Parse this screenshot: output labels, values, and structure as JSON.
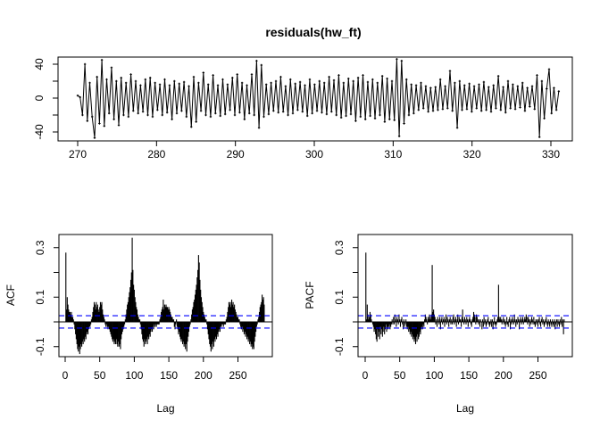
{
  "chart_data": [
    {
      "type": "line",
      "title": "residuals(hw_ft)",
      "xlabel": "",
      "ylabel": "",
      "xlim": [
        270,
        331
      ],
      "ylim": [
        -47,
        46
      ],
      "x_ticks": [
        270,
        280,
        290,
        300,
        310,
        320,
        330
      ],
      "y_ticks": [
        -40,
        -20,
        0,
        20,
        40
      ],
      "y_tick_labels": [
        "-40",
        "",
        "0",
        "",
        "40"
      ],
      "x_start": 270,
      "x_end": 331,
      "values": [
        3,
        1,
        -20,
        40,
        -27,
        18,
        -22,
        -47,
        25,
        -30,
        45,
        -33,
        22,
        -18,
        36,
        -25,
        20,
        -32,
        24,
        -20,
        18,
        -22,
        28,
        -15,
        20,
        -18,
        15,
        -16,
        22,
        -20,
        24,
        -22,
        18,
        -14,
        16,
        -20,
        22,
        -17,
        15,
        -25,
        20,
        -18,
        17,
        -15,
        19,
        -22,
        14,
        -34,
        25,
        -28,
        18,
        -15,
        30,
        -20,
        16,
        -22,
        27,
        -18,
        15,
        -21,
        22,
        -19,
        16,
        -14,
        24,
        -20,
        28,
        -17,
        18,
        -25,
        15,
        -18,
        28,
        -20,
        44,
        -35,
        39,
        -22,
        16,
        -19,
        18,
        -15,
        20,
        -17,
        25,
        -16,
        14,
        -20,
        22,
        -18,
        17,
        -14,
        19,
        -16,
        15,
        -21,
        22,
        -18,
        16,
        -15,
        20,
        -17,
        18,
        -19,
        25,
        -16,
        21,
        -20,
        27,
        -23,
        18,
        -21,
        23,
        -19,
        20,
        -27,
        24,
        -22,
        27,
        -25,
        19,
        -21,
        22,
        -24,
        18,
        -20,
        26,
        -28,
        23,
        -25,
        20,
        -26,
        46,
        -45,
        44,
        -30,
        22,
        -20,
        16,
        -18,
        15,
        -14,
        18,
        -12,
        14,
        -16,
        12,
        -15,
        13,
        -14,
        22,
        -13,
        14,
        -12,
        32,
        -15,
        18,
        -35,
        20,
        -14,
        15,
        -13,
        17,
        -16,
        14,
        -12,
        16,
        -15,
        19,
        -14,
        13,
        -16,
        15,
        -12,
        26,
        -14,
        13,
        -17,
        20,
        -12,
        16,
        -13,
        14,
        -11,
        18,
        -15,
        12,
        -10,
        14,
        -13,
        27,
        -46,
        20,
        -24,
        11,
        34,
        -18,
        12,
        -14,
        8
      ]
    },
    {
      "type": "bar",
      "ylabel": "ACF",
      "xlabel": "Lag",
      "xlim": [
        -9,
        300
      ],
      "ylim": [
        -0.14,
        0.353
      ],
      "x_ticks": [
        0,
        50,
        100,
        150,
        200,
        250
      ],
      "y_ticks": [
        -0.1,
        0.0,
        0.1,
        0.2,
        0.3
      ],
      "y_tick_labels": [
        "-0.1",
        "",
        "0.1",
        "",
        "0.3"
      ],
      "conf_limit": 0.025,
      "conf_color": "#0000ff",
      "values": [
        0.28,
        0.05,
        0.1,
        0.07,
        0.05,
        0.04,
        0.04,
        0.03,
        0.04,
        0.02,
        0.02,
        0.01,
        -0.01,
        -0.03,
        -0.05,
        -0.07,
        -0.09,
        -0.11,
        -0.12,
        -0.1,
        -0.13,
        -0.11,
        -0.09,
        -0.1,
        -0.08,
        -0.09,
        -0.07,
        -0.08,
        -0.06,
        -0.07,
        -0.05,
        -0.04,
        -0.05,
        -0.03,
        -0.02,
        -0.02,
        -0.01,
        0.01,
        0.02,
        0.04,
        0.06,
        0.08,
        0.07,
        0.05,
        0.08,
        0.06,
        0.07,
        0.05,
        0.04,
        0.06,
        0.08,
        0.07,
        0.08,
        0.05,
        0.03,
        0.02,
        0.01,
        -0.01,
        -0.02,
        -0.01,
        -0.02,
        -0.03,
        -0.02,
        -0.03,
        -0.04,
        -0.05,
        -0.06,
        -0.07,
        -0.08,
        -0.07,
        -0.09,
        -0.08,
        -0.09,
        -0.07,
        -0.09,
        -0.1,
        -0.08,
        -0.1,
        -0.09,
        -0.11,
        -0.07,
        -0.05,
        -0.04,
        -0.03,
        -0.02,
        -0.01,
        0.01,
        0.03,
        0.05,
        0.07,
        0.08,
        0.1,
        0.12,
        0.14,
        0.17,
        0.2,
        0.34,
        0.21,
        0.15,
        0.13,
        0.1,
        0.08,
        0.06,
        0.05,
        0.03,
        0.02,
        0.01,
        0.01,
        -0.01,
        -0.03,
        -0.05,
        -0.07,
        -0.08,
        -0.1,
        -0.07,
        -0.09,
        -0.08,
        -0.07,
        -0.09,
        -0.06,
        -0.07,
        -0.05,
        -0.06,
        -0.04,
        -0.03,
        -0.04,
        -0.02,
        -0.03,
        -0.01,
        -0.02,
        -0.01,
        -0.02,
        -0.01,
        -0.01,
        -0.01,
        -0.01,
        0.01,
        0.02,
        0.04,
        0.05,
        0.06,
        0.09,
        0.05,
        0.07,
        0.06,
        0.07,
        0.06,
        0.06,
        0.05,
        0.06,
        0.05,
        0.04,
        0.03,
        0.02,
        0.02,
        0.01,
        0.01,
        -0.02,
        -0.03,
        -0.01,
        0.01,
        -0.02,
        -0.03,
        -0.05,
        -0.04,
        -0.06,
        -0.07,
        -0.08,
        -0.07,
        -0.09,
        -0.08,
        -0.1,
        -0.09,
        -0.11,
        -0.09,
        -0.12,
        -0.08,
        -0.06,
        -0.04,
        -0.02,
        -0.01,
        0.01,
        0.03,
        0.05,
        0.06,
        0.08,
        0.09,
        0.11,
        0.13,
        0.15,
        0.18,
        0.21,
        0.27,
        0.24,
        0.17,
        0.13,
        0.1,
        0.08,
        0.06,
        0.04,
        0.03,
        0.02,
        0.01,
        0.01,
        -0.01,
        -0.03,
        -0.05,
        -0.07,
        -0.09,
        -0.1,
        -0.12,
        -0.09,
        -0.11,
        -0.08,
        -0.1,
        -0.07,
        -0.08,
        -0.06,
        -0.07,
        -0.05,
        -0.06,
        -0.04,
        -0.03,
        -0.04,
        -0.02,
        -0.02,
        -0.01,
        -0.01,
        -0.02,
        -0.01,
        -0.01,
        -0.01,
        0.01,
        0.02,
        0.04,
        0.06,
        0.08,
        0.07,
        0.08,
        0.06,
        0.09,
        0.07,
        0.08,
        0.06,
        0.07,
        0.05,
        0.04,
        0.03,
        0.02,
        0.02,
        0.01,
        0.01,
        -0.01,
        -0.02,
        -0.03,
        -0.02,
        -0.04,
        -0.03,
        -0.05,
        -0.04,
        -0.06,
        -0.05,
        -0.07,
        -0.06,
        -0.08,
        -0.07,
        -0.09,
        -0.08,
        -0.1,
        -0.09,
        -0.11,
        -0.1,
        -0.11,
        -0.08,
        -0.06,
        -0.04,
        -0.02,
        -0.01,
        0.01,
        0.02,
        0.04,
        0.06,
        0.07,
        0.08,
        0.11,
        0.09,
        0.1,
        0.07
      ]
    },
    {
      "type": "bar",
      "ylabel": "PACF",
      "xlabel": "Lag",
      "xlim": [
        -9,
        300
      ],
      "ylim": [
        -0.14,
        0.353
      ],
      "x_ticks": [
        0,
        50,
        100,
        150,
        200,
        250
      ],
      "y_ticks": [
        -0.1,
        0.0,
        0.1,
        0.2,
        0.3
      ],
      "y_tick_labels": [
        "-0.1",
        "",
        "0.1",
        "",
        "0.3"
      ],
      "conf_limit": 0.025,
      "conf_color": "#0000ff",
      "values": [
        0.28,
        0.01,
        0.07,
        0.03,
        0.01,
        0.02,
        0.04,
        0.03,
        0.01,
        0.0,
        -0.01,
        -0.02,
        -0.04,
        -0.03,
        -0.05,
        -0.07,
        -0.08,
        -0.03,
        -0.06,
        -0.04,
        -0.07,
        -0.02,
        -0.05,
        -0.03,
        -0.06,
        -0.04,
        -0.02,
        -0.05,
        -0.03,
        -0.01,
        -0.04,
        -0.02,
        -0.03,
        -0.02,
        -0.01,
        -0.03,
        -0.02,
        -0.01,
        0.01,
        -0.01,
        0.02,
        -0.01,
        0.03,
        0.01,
        -0.02,
        0.02,
        0.01,
        -0.01,
        0.03,
        0.01,
        -0.02,
        0.01,
        0.02,
        -0.01,
        -0.03,
        0.01,
        -0.02,
        -0.01,
        0.01,
        -0.02,
        -0.03,
        -0.02,
        -0.04,
        -0.03,
        -0.05,
        -0.04,
        -0.06,
        -0.05,
        -0.07,
        -0.06,
        -0.08,
        -0.07,
        -0.09,
        -0.06,
        -0.08,
        -0.05,
        -0.07,
        -0.06,
        -0.04,
        -0.05,
        -0.03,
        -0.02,
        -0.03,
        -0.01,
        -0.02,
        0.01,
        0.03,
        0.02,
        0.01,
        -0.01,
        0.02,
        0.01,
        0.03,
        0.02,
        0.01,
        0.03,
        0.23,
        0.04,
        0.05,
        0.03,
        0.02,
        -0.01,
        0.01,
        -0.02,
        0.02,
        0.01,
        -0.01,
        0.02,
        -0.03,
        0.01,
        0.02,
        -0.01,
        0.01,
        0.02,
        -0.02,
        0.01,
        0.03,
        -0.01,
        0.02,
        0.01,
        -0.02,
        0.01,
        0.02,
        -0.01,
        0.01,
        -0.01,
        0.02,
        0.03,
        -0.01,
        0.01,
        0.02,
        -0.02,
        0.01,
        0.03,
        -0.01,
        0.02,
        0.01,
        0.01,
        -0.02,
        0.02,
        0.05,
        0.01,
        -0.01,
        0.02,
        0.01,
        -0.01,
        0.02,
        0.01,
        -0.02,
        0.01,
        0.02,
        0.01,
        -0.01,
        -0.02,
        0.01,
        0.02,
        0.04,
        0.03,
        0.02,
        -0.01,
        0.03,
        0.02,
        0.01,
        -0.01,
        0.01,
        -0.02,
        0.01,
        0.0,
        -0.03,
        0.01,
        -0.02,
        0.02,
        -0.01,
        0.01,
        -0.02,
        -0.01,
        0.01,
        0.02,
        -0.01,
        -0.02,
        -0.01,
        0.01,
        -0.02,
        0.01,
        -0.03,
        -0.01,
        0.02,
        -0.01,
        -0.02,
        -0.01,
        0.01,
        0.02,
        0.15,
        0.02,
        0.01,
        0.02,
        0.01,
        -0.01,
        0.01,
        0.02,
        -0.01,
        0.01,
        -0.02,
        -0.01,
        0.02,
        -0.01,
        -0.02,
        0.01,
        0.02,
        -0.03,
        0.01,
        -0.01,
        0.02,
        0.01,
        -0.01,
        0.03,
        0.01,
        -0.02,
        0.01,
        -0.01,
        0.02,
        0.01,
        -0.03,
        0.01,
        0.02,
        -0.01,
        0.01,
        0.02,
        -0.01,
        0.01,
        0.02,
        0.01,
        0.03,
        0.02,
        -0.01,
        0.02,
        0.01,
        -0.02,
        0.01,
        -0.01,
        0.02,
        0.01,
        -0.01,
        0.02,
        -0.01,
        -0.02,
        0.01,
        -0.01,
        0.01,
        -0.02,
        0.01,
        0.02,
        -0.01,
        -0.02,
        0.01,
        0.02,
        -0.01,
        0.01,
        -0.02,
        -0.01,
        0.01,
        0.02,
        -0.01,
        -0.02,
        0.01,
        -0.01,
        -0.02,
        0.01,
        -0.01,
        -0.02,
        0.01,
        -0.01,
        -0.02,
        0.01,
        -0.03,
        -0.01,
        0.01,
        -0.02,
        0.01,
        -0.01,
        -0.02,
        0.01,
        -0.01,
        0.02,
        -0.02,
        0.01,
        -0.05,
        0.01
      ]
    }
  ]
}
